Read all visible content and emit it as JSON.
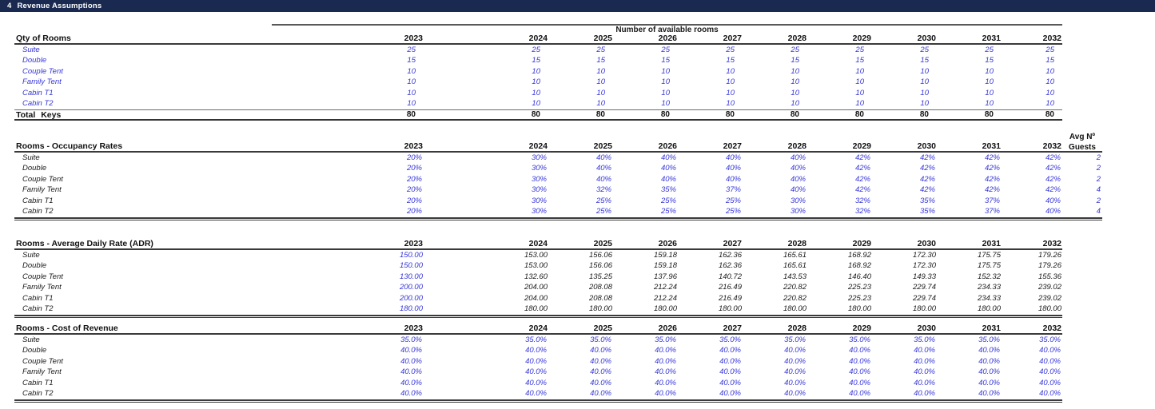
{
  "title_bar": {
    "number": "4",
    "label": "Revenue Assumptions"
  },
  "colors": {
    "title_bar_bg": "#19294f",
    "input_value_blue": "#3636d9"
  },
  "years": [
    "2023",
    "2024",
    "2025",
    "2026",
    "2027",
    "2028",
    "2029",
    "2030",
    "2031",
    "2032"
  ],
  "qty_table": {
    "caption": "Number of available rooms",
    "header": "Qty of Rooms",
    "rows": [
      {
        "label": "Suite",
        "values": [
          "25",
          "25",
          "25",
          "25",
          "25",
          "25",
          "25",
          "25",
          "25",
          "25"
        ]
      },
      {
        "label": "Double",
        "values": [
          "15",
          "15",
          "15",
          "15",
          "15",
          "15",
          "15",
          "15",
          "15",
          "15"
        ]
      },
      {
        "label": "Couple Tent",
        "values": [
          "10",
          "10",
          "10",
          "10",
          "10",
          "10",
          "10",
          "10",
          "10",
          "10"
        ]
      },
      {
        "label": "Family Tent",
        "values": [
          "10",
          "10",
          "10",
          "10",
          "10",
          "10",
          "10",
          "10",
          "10",
          "10"
        ]
      },
      {
        "label": "Cabin T1",
        "values": [
          "10",
          "10",
          "10",
          "10",
          "10",
          "10",
          "10",
          "10",
          "10",
          "10"
        ]
      },
      {
        "label": "Cabin T2",
        "values": [
          "10",
          "10",
          "10",
          "10",
          "10",
          "10",
          "10",
          "10",
          "10",
          "10"
        ]
      }
    ],
    "total": {
      "label": "Total Keys",
      "values": [
        "80",
        "80",
        "80",
        "80",
        "80",
        "80",
        "80",
        "80",
        "80",
        "80"
      ]
    }
  },
  "occupancy_table": {
    "header": "Rooms - Occupancy Rates",
    "avg_header_line1": "Avg Nº",
    "avg_header_line2": "Guests",
    "rows": [
      {
        "label": "Suite",
        "values": [
          "20%",
          "30%",
          "40%",
          "40%",
          "40%",
          "40%",
          "42%",
          "42%",
          "42%",
          "42%"
        ],
        "avg_guests": "2"
      },
      {
        "label": "Double",
        "values": [
          "20%",
          "30%",
          "40%",
          "40%",
          "40%",
          "40%",
          "42%",
          "42%",
          "42%",
          "42%"
        ],
        "avg_guests": "2"
      },
      {
        "label": "Couple Tent",
        "values": [
          "20%",
          "30%",
          "40%",
          "40%",
          "40%",
          "40%",
          "42%",
          "42%",
          "42%",
          "42%"
        ],
        "avg_guests": "2"
      },
      {
        "label": "Family Tent",
        "values": [
          "20%",
          "30%",
          "32%",
          "35%",
          "37%",
          "40%",
          "42%",
          "42%",
          "42%",
          "42%"
        ],
        "avg_guests": "4"
      },
      {
        "label": "Cabin T1",
        "values": [
          "20%",
          "30%",
          "25%",
          "25%",
          "25%",
          "30%",
          "32%",
          "35%",
          "37%",
          "40%"
        ],
        "avg_guests": "2"
      },
      {
        "label": "Cabin T2",
        "values": [
          "20%",
          "30%",
          "25%",
          "25%",
          "25%",
          "30%",
          "32%",
          "35%",
          "37%",
          "40%"
        ],
        "avg_guests": "4"
      }
    ]
  },
  "adr_table": {
    "header": "Rooms - Average Daily Rate (ADR)",
    "rows": [
      {
        "label": "Suite",
        "values": [
          "150.00",
          "153.00",
          "156.06",
          "159.18",
          "162.36",
          "165.61",
          "168.92",
          "172.30",
          "175.75",
          "179.26"
        ]
      },
      {
        "label": "Double",
        "values": [
          "150.00",
          "153.00",
          "156.06",
          "159.18",
          "162.36",
          "165.61",
          "168.92",
          "172.30",
          "175.75",
          "179.26"
        ]
      },
      {
        "label": "Couple Tent",
        "values": [
          "130.00",
          "132.60",
          "135.25",
          "137.96",
          "140.72",
          "143.53",
          "146.40",
          "149.33",
          "152.32",
          "155.36"
        ]
      },
      {
        "label": "Family Tent",
        "values": [
          "200.00",
          "204.00",
          "208.08",
          "212.24",
          "216.49",
          "220.82",
          "225.23",
          "229.74",
          "234.33",
          "239.02"
        ]
      },
      {
        "label": "Cabin T1",
        "values": [
          "200.00",
          "204.00",
          "208.08",
          "212.24",
          "216.49",
          "220.82",
          "225.23",
          "229.74",
          "234.33",
          "239.02"
        ]
      },
      {
        "label": "Cabin T2",
        "values": [
          "180.00",
          "180.00",
          "180.00",
          "180.00",
          "180.00",
          "180.00",
          "180.00",
          "180.00",
          "180.00",
          "180.00"
        ]
      }
    ]
  },
  "cost_table": {
    "header": "Rooms - Cost of Revenue",
    "rows": [
      {
        "label": "Suite",
        "values": [
          "35.0%",
          "35.0%",
          "35.0%",
          "35.0%",
          "35.0%",
          "35.0%",
          "35.0%",
          "35.0%",
          "35.0%",
          "35.0%"
        ]
      },
      {
        "label": "Double",
        "values": [
          "40.0%",
          "40.0%",
          "40.0%",
          "40.0%",
          "40.0%",
          "40.0%",
          "40.0%",
          "40.0%",
          "40.0%",
          "40.0%"
        ]
      },
      {
        "label": "Couple Tent",
        "values": [
          "40.0%",
          "40.0%",
          "40.0%",
          "40.0%",
          "40.0%",
          "40.0%",
          "40.0%",
          "40.0%",
          "40.0%",
          "40.0%"
        ]
      },
      {
        "label": "Family Tent",
        "values": [
          "40.0%",
          "40.0%",
          "40.0%",
          "40.0%",
          "40.0%",
          "40.0%",
          "40.0%",
          "40.0%",
          "40.0%",
          "40.0%"
        ]
      },
      {
        "label": "Cabin T1",
        "values": [
          "40.0%",
          "40.0%",
          "40.0%",
          "40.0%",
          "40.0%",
          "40.0%",
          "40.0%",
          "40.0%",
          "40.0%",
          "40.0%"
        ]
      },
      {
        "label": "Cabin T2",
        "values": [
          "40.0%",
          "40.0%",
          "40.0%",
          "40.0%",
          "40.0%",
          "40.0%",
          "40.0%",
          "40.0%",
          "40.0%",
          "40.0%"
        ]
      }
    ]
  }
}
